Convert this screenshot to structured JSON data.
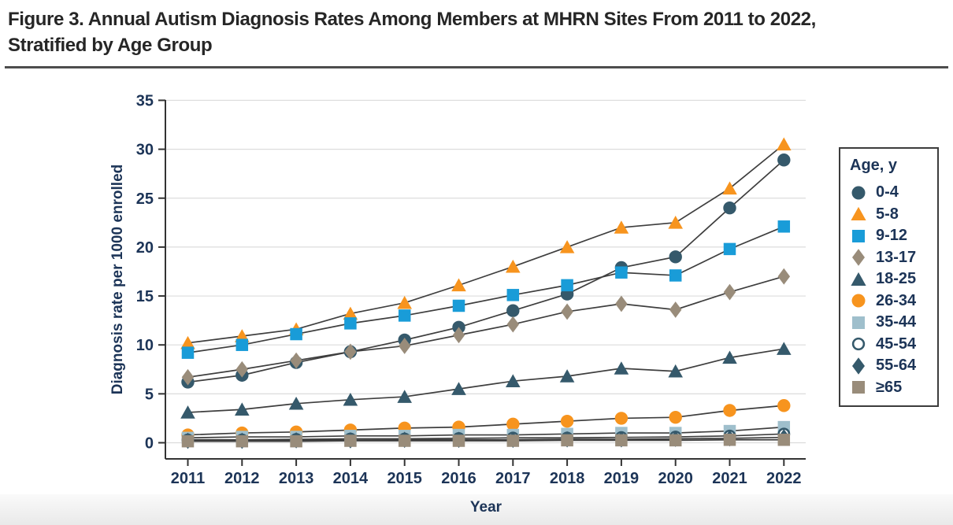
{
  "figure": {
    "title_line1": "Figure 3. Annual Autism Diagnosis Rates Among Members at MHRN Sites From 2011 to 2022,",
    "title_line2": "Stratified by Age Group"
  },
  "colors": {
    "dark_teal": "#35596B",
    "orange": "#F7941E",
    "blue": "#199CD8",
    "taupe": "#998C7A",
    "light_blue_gray": "#9FBFCC",
    "line": "#3E3E3E",
    "grid": "#DCDCDC",
    "spine": "#333333",
    "text_navy": "#1C3457"
  },
  "chart_data": {
    "type": "line",
    "x": [
      2011,
      2012,
      2013,
      2014,
      2015,
      2016,
      2017,
      2018,
      2019,
      2020,
      2021,
      2022
    ],
    "xlabel": "Year",
    "ylabel": "Diagnosis rate per 1000 enrolled",
    "ylim": [
      0,
      35
    ],
    "yticks": [
      0,
      5,
      10,
      15,
      20,
      25,
      30,
      35
    ],
    "grid": true,
    "legend_title": "Age, y",
    "legend_position": "right",
    "series": [
      {
        "name": "0-4",
        "marker": "circle",
        "color": "#35596B",
        "values": [
          6.2,
          6.9,
          8.2,
          9.3,
          10.5,
          11.8,
          13.5,
          15.2,
          17.9,
          19.0,
          24.0,
          28.9
        ]
      },
      {
        "name": "5-8",
        "marker": "triangle",
        "color": "#F7941E",
        "values": [
          10.2,
          10.9,
          11.6,
          13.2,
          14.3,
          16.1,
          18.0,
          20.0,
          22.0,
          22.5,
          26.0,
          30.5
        ]
      },
      {
        "name": "9-12",
        "marker": "square",
        "color": "#199CD8",
        "values": [
          9.2,
          10.0,
          11.1,
          12.2,
          13.0,
          14.0,
          15.1,
          16.1,
          17.4,
          17.1,
          19.8,
          22.1
        ]
      },
      {
        "name": "13-17",
        "marker": "diamond",
        "color": "#998C7A",
        "values": [
          6.7,
          7.5,
          8.4,
          9.3,
          9.9,
          11.0,
          12.1,
          13.4,
          14.2,
          13.6,
          15.4,
          17.0
        ]
      },
      {
        "name": "18-25",
        "marker": "triangle",
        "color": "#35596B",
        "values": [
          3.1,
          3.4,
          4.0,
          4.4,
          4.7,
          5.5,
          6.3,
          6.8,
          7.6,
          7.3,
          8.7,
          9.6
        ]
      },
      {
        "name": "26-34",
        "marker": "circle",
        "color": "#F7941E",
        "values": [
          0.8,
          1.0,
          1.1,
          1.3,
          1.5,
          1.6,
          1.9,
          2.2,
          2.5,
          2.6,
          3.3,
          3.8
        ]
      },
      {
        "name": "35-44",
        "marker": "square",
        "color": "#9FBFCC",
        "values": [
          0.5,
          0.6,
          0.6,
          0.7,
          0.7,
          0.8,
          0.8,
          0.9,
          1.0,
          1.0,
          1.2,
          1.6
        ]
      },
      {
        "name": "45-54",
        "marker": "circle-open",
        "color": "#35596B",
        "values": [
          0.3,
          0.3,
          0.35,
          0.4,
          0.4,
          0.45,
          0.5,
          0.5,
          0.55,
          0.6,
          0.7,
          0.9
        ]
      },
      {
        "name": "55-64",
        "marker": "diamond",
        "color": "#35596B",
        "values": [
          0.2,
          0.2,
          0.25,
          0.25,
          0.3,
          0.3,
          0.3,
          0.35,
          0.35,
          0.4,
          0.45,
          0.55
        ]
      },
      {
        "name": "≥65",
        "marker": "square",
        "color": "#998C7A",
        "values": [
          0.15,
          0.15,
          0.15,
          0.2,
          0.2,
          0.2,
          0.2,
          0.25,
          0.25,
          0.25,
          0.3,
          0.3
        ]
      }
    ]
  }
}
